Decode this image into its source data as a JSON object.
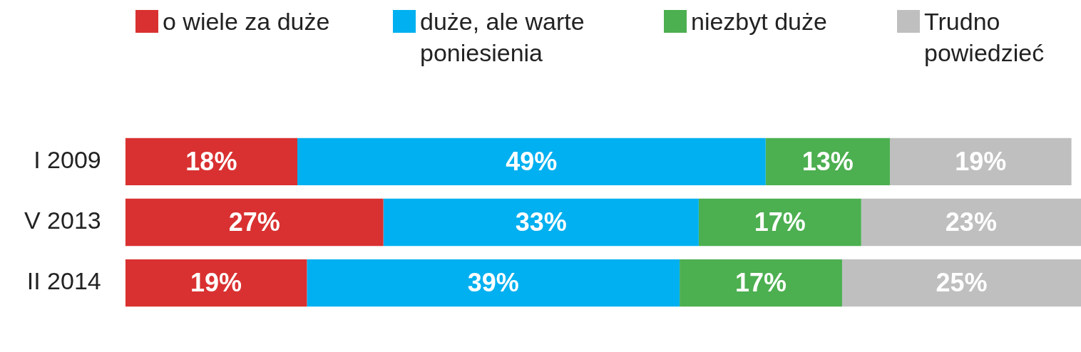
{
  "chart_data": {
    "type": "bar",
    "orientation": "horizontal",
    "stacked": true,
    "categories": [
      "I 2009",
      "V 2013",
      "II 2014"
    ],
    "xlim": [
      0,
      100
    ],
    "tick_labels": "y",
    "grid": false,
    "legend": "top",
    "series": [
      {
        "name": "o wiele za duże",
        "color": "#d93131",
        "values": [
          18,
          27,
          19
        ],
        "value_labels": [
          "18%",
          "27%",
          "19%"
        ]
      },
      {
        "name": "duże, ale warte poniesienia",
        "color": "#00b0f0",
        "values": [
          49,
          33,
          39
        ],
        "value_labels": [
          "49%",
          "33%",
          "39%"
        ]
      },
      {
        "name": "niezbyt duże",
        "color": "#4caf50",
        "values": [
          13,
          17,
          17
        ],
        "value_labels": [
          "13%",
          "17%",
          "17%"
        ]
      },
      {
        "name": "Trudno powiedzieć",
        "color": "#bfbfbf",
        "values": [
          19,
          23,
          25
        ],
        "value_labels": [
          "19%",
          "23%",
          "25%"
        ]
      }
    ]
  }
}
